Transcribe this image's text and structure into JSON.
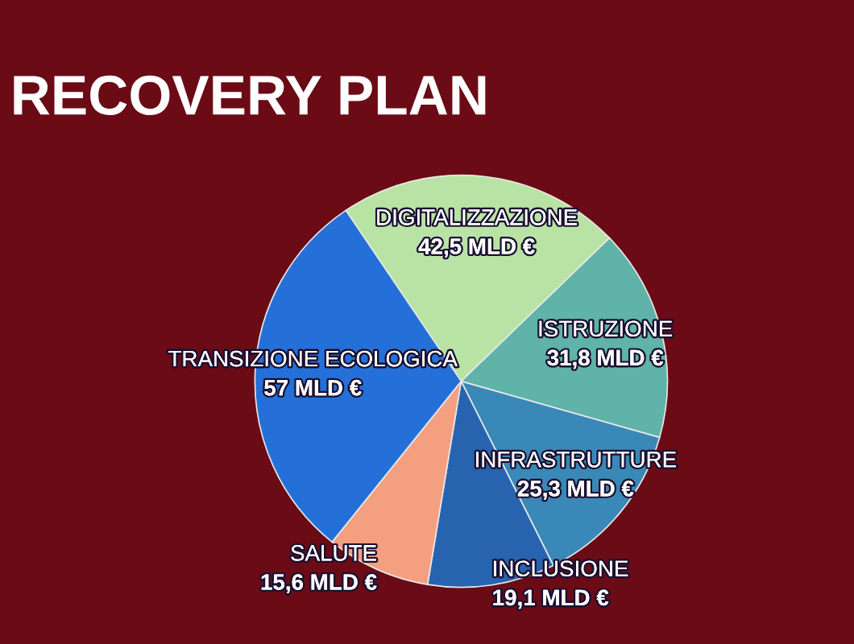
{
  "chart_data": {
    "type": "pie",
    "title": "RECOVERY PLAN",
    "categories": [
      "DIGITALIZZAZIONE",
      "ISTRUZIONE",
      "INFRASTRUTTURE",
      "INCLUSIONE",
      "SALUTE",
      "TRANSIZIONE ECOLOGICA"
    ],
    "values": [
      42.5,
      31.8,
      25.3,
      19.1,
      15.6,
      57
    ],
    "value_labels": [
      "42,5 MLD €",
      "31,8 MLD €",
      "25,3 MLD €",
      "19,1 MLD €",
      "15,6 MLD €",
      "57 MLD €"
    ],
    "colors": [
      "#b9e3a4",
      "#5fb3a8",
      "#3a88b8",
      "#2863b0",
      "#f4a080",
      "#2470d8"
    ]
  }
}
